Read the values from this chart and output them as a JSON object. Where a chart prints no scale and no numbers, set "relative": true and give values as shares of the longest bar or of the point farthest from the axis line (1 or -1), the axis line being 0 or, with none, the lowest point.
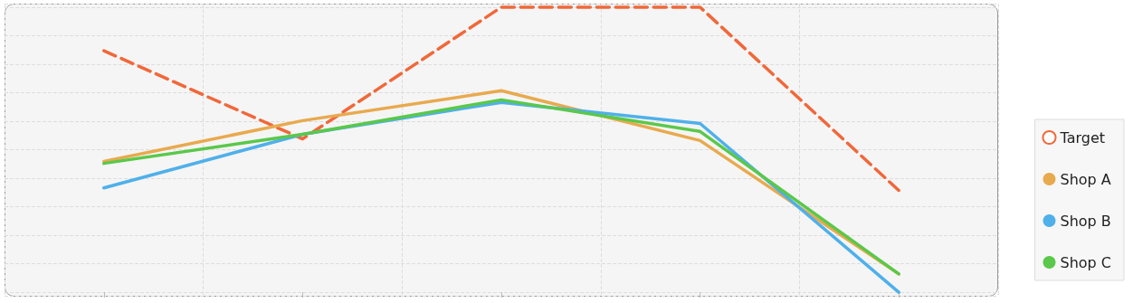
{
  "chart_data": {
    "type": "line",
    "relative": true,
    "categories": [
      null,
      null,
      null,
      null,
      null
    ],
    "grid": true,
    "legend": "right",
    "marker": "none",
    "series": [
      {
        "name": "Target",
        "color": "#f0683a",
        "line_style": "dashed",
        "values": [
          0.847,
          0.538,
          1,
          1,
          0.357
        ]
      },
      {
        "name": "Shop A",
        "color": "#e8aa4e",
        "line_style": "solid",
        "values": [
          0.459,
          0.602,
          0.707,
          0.532,
          0.064
        ]
      },
      {
        "name": "Shop B",
        "color": "#4fb0ea",
        "line_style": "solid",
        "values": [
          0.366,
          0.554,
          0.666,
          0.592,
          0
        ]
      },
      {
        "name": "Shop C",
        "color": "#5ac84a",
        "line_style": "solid",
        "values": [
          0.452,
          0.554,
          0.675,
          0.564,
          0.064
        ]
      }
    ]
  }
}
